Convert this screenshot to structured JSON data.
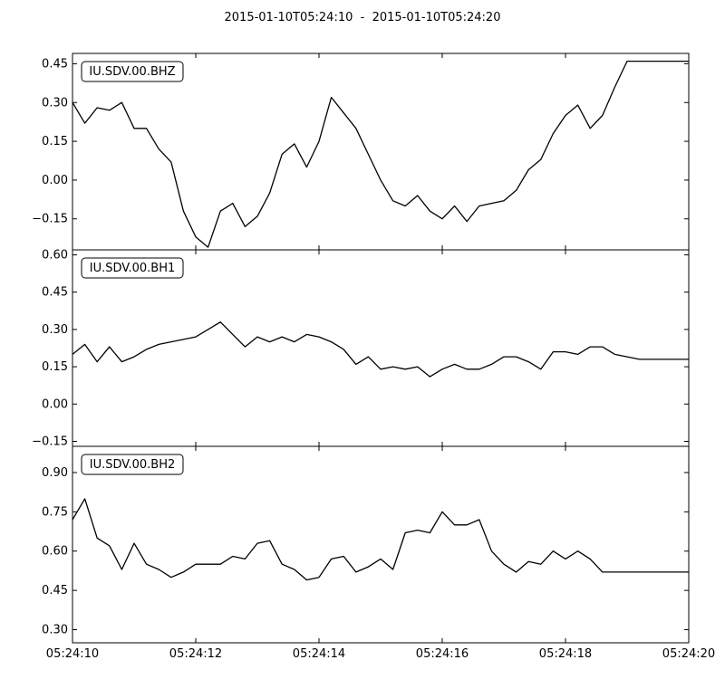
{
  "title": "2015-01-10T05:24:10  -  2015-01-10T05:24:20",
  "chart_data": {
    "type": "line",
    "shared_x_ticks": [
      "05:24:10",
      "05:24:12",
      "05:24:14",
      "05:24:16",
      "05:24:18",
      "05:24:20"
    ],
    "xlim": [
      "05:24:10",
      "05:24:20"
    ],
    "grid": false,
    "panels": [
      {
        "label": "IU.SDV.00.BHZ",
        "ylim": [
          -0.27,
          0.49
        ],
        "yticks": [
          "0.45",
          "0.30",
          "0.15",
          "0.00",
          "−0.15"
        ],
        "ytick_values": [
          0.45,
          0.3,
          0.15,
          0.0,
          -0.15
        ],
        "x_seconds": [
          0,
          0.2,
          0.4,
          0.6,
          0.8,
          1.0,
          1.2,
          1.4,
          1.6,
          1.8,
          2.0,
          2.2,
          2.4,
          2.6,
          2.8,
          3.0,
          3.2,
          3.4,
          3.6,
          3.8,
          4.0,
          4.2,
          4.4,
          4.6,
          4.8,
          5.0,
          5.2,
          5.4,
          5.6,
          5.8,
          6.0,
          6.2,
          6.4,
          6.6,
          6.8,
          7.0,
          7.2,
          7.4,
          7.6,
          7.8,
          8.0,
          8.2,
          8.4,
          8.6,
          8.8,
          9.0,
          9.2,
          9.4,
          9.6,
          9.8,
          10.0
        ],
        "values": [
          0.3,
          0.22,
          0.28,
          0.27,
          0.3,
          0.2,
          0.2,
          0.12,
          0.07,
          -0.12,
          -0.22,
          -0.26,
          -0.12,
          -0.09,
          -0.18,
          -0.14,
          -0.05,
          0.1,
          0.14,
          0.05,
          0.15,
          0.32,
          0.26,
          0.2,
          0.1,
          0.0,
          -0.08,
          -0.1,
          -0.06,
          -0.12,
          -0.15,
          -0.1,
          -0.16,
          -0.1,
          -0.09,
          -0.08,
          -0.04,
          0.04,
          0.08,
          0.18,
          0.25,
          0.29,
          0.2,
          0.25,
          0.36,
          0.46,
          0.46,
          0.46,
          0.46,
          0.46,
          0.46
        ]
      },
      {
        "label": "IU.SDV.00.BH1",
        "ylim": [
          -0.17,
          0.62
        ],
        "yticks": [
          "0.60",
          "0.45",
          "0.30",
          "0.15",
          "0.00",
          "−0.15"
        ],
        "ytick_values": [
          0.6,
          0.45,
          0.3,
          0.15,
          0.0,
          -0.15
        ],
        "x_seconds": [
          0,
          0.2,
          0.4,
          0.6,
          0.8,
          1.0,
          1.2,
          1.4,
          1.6,
          1.8,
          2.0,
          2.2,
          2.4,
          2.6,
          2.8,
          3.0,
          3.2,
          3.4,
          3.6,
          3.8,
          4.0,
          4.2,
          4.4,
          4.6,
          4.8,
          5.0,
          5.2,
          5.4,
          5.6,
          5.8,
          6.0,
          6.2,
          6.4,
          6.6,
          6.8,
          7.0,
          7.2,
          7.4,
          7.6,
          7.8,
          8.0,
          8.2,
          8.4,
          8.6,
          8.8,
          9.0,
          9.2,
          9.4,
          9.6,
          9.8,
          10.0
        ],
        "values": [
          0.2,
          0.24,
          0.17,
          0.23,
          0.17,
          0.19,
          0.22,
          0.24,
          0.25,
          0.26,
          0.27,
          0.3,
          0.33,
          0.28,
          0.23,
          0.27,
          0.25,
          0.27,
          0.25,
          0.28,
          0.27,
          0.25,
          0.22,
          0.16,
          0.19,
          0.14,
          0.15,
          0.14,
          0.15,
          0.11,
          0.14,
          0.16,
          0.14,
          0.14,
          0.16,
          0.19,
          0.19,
          0.17,
          0.14,
          0.21,
          0.21,
          0.2,
          0.23,
          0.23,
          0.2,
          0.19,
          0.18,
          0.18,
          0.18,
          0.18,
          0.18
        ]
      },
      {
        "label": "IU.SDV.00.BH2",
        "ylim": [
          0.25,
          1.0
        ],
        "yticks": [
          "0.90",
          "0.75",
          "0.60",
          "0.45",
          "0.30"
        ],
        "ytick_values": [
          0.9,
          0.75,
          0.6,
          0.45,
          0.3
        ],
        "x_seconds": [
          0,
          0.2,
          0.4,
          0.6,
          0.8,
          1.0,
          1.2,
          1.4,
          1.6,
          1.8,
          2.0,
          2.2,
          2.4,
          2.6,
          2.8,
          3.0,
          3.2,
          3.4,
          3.6,
          3.8,
          4.0,
          4.2,
          4.4,
          4.6,
          4.8,
          5.0,
          5.2,
          5.4,
          5.6,
          5.8,
          6.0,
          6.2,
          6.4,
          6.6,
          6.8,
          7.0,
          7.2,
          7.4,
          7.6,
          7.8,
          8.0,
          8.2,
          8.4,
          8.6,
          8.8,
          9.0,
          9.2,
          9.4,
          9.6,
          9.8,
          10.0
        ],
        "values": [
          0.72,
          0.8,
          0.65,
          0.62,
          0.53,
          0.63,
          0.55,
          0.53,
          0.5,
          0.52,
          0.55,
          0.55,
          0.55,
          0.58,
          0.57,
          0.63,
          0.64,
          0.55,
          0.53,
          0.49,
          0.5,
          0.57,
          0.58,
          0.52,
          0.54,
          0.57,
          0.53,
          0.67,
          0.68,
          0.67,
          0.75,
          0.7,
          0.7,
          0.72,
          0.6,
          0.55,
          0.52,
          0.56,
          0.55,
          0.6,
          0.57,
          0.6,
          0.57,
          0.52,
          0.52,
          0.52,
          0.52,
          0.52,
          0.52,
          0.52,
          0.52
        ]
      }
    ]
  }
}
